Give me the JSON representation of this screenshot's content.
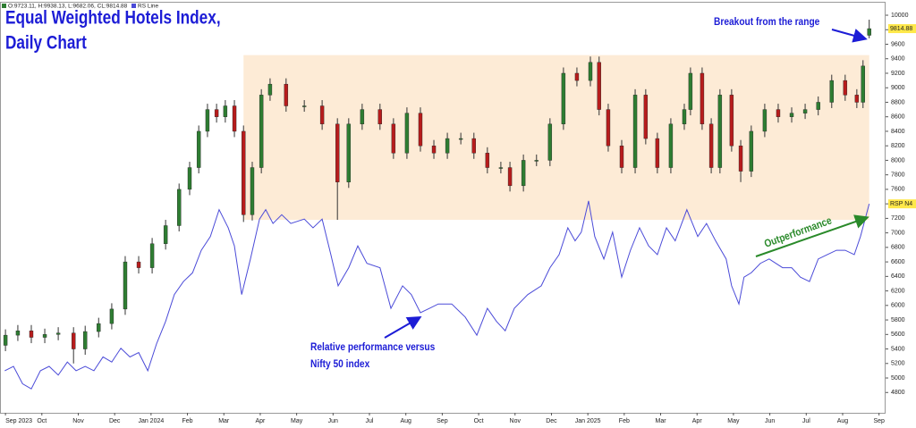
{
  "chart_data": {
    "type": "candlestick",
    "title": [
      "Equal Weighted Hotels Index,",
      "Daily Chart"
    ],
    "ohlc_label": "O:9723.11, H:9938.13, L:9682.06, CL:9814.88",
    "rs_tag": "RSP N4",
    "annotations": {
      "breakout": "Breakout from the range",
      "outperformance": "Outperformance",
      "relative": [
        "Relative performance versus",
        "Nifty 50 index"
      ]
    },
    "range": {
      "x": [
        6.54,
        23.73
      ],
      "y": [
        7180,
        9450
      ],
      "color": "#fdebd6"
    },
    "xlim": [
      -0.15,
      24.18
    ],
    "ylim": [
      4520,
      10185
    ],
    "xticks": [
      {
        "value": 0,
        "label": "Sep 2023"
      },
      {
        "value": 1,
        "label": "Oct"
      },
      {
        "value": 2,
        "label": "Nov"
      },
      {
        "value": 3,
        "label": "Dec"
      },
      {
        "value": 4,
        "label": "Jan 2024"
      },
      {
        "value": 5,
        "label": "Feb"
      },
      {
        "value": 6,
        "label": "Mar"
      },
      {
        "value": 7,
        "label": "Apr"
      },
      {
        "value": 8,
        "label": "May"
      },
      {
        "value": 9,
        "label": "Jun"
      },
      {
        "value": 10,
        "label": "Jul"
      },
      {
        "value": 11,
        "label": "Aug"
      },
      {
        "value": 12,
        "label": "Sep"
      },
      {
        "value": 13,
        "label": "Oct"
      },
      {
        "value": 14,
        "label": "Nov"
      },
      {
        "value": 15,
        "label": "Dec"
      },
      {
        "value": 16,
        "label": "Jan 2025"
      },
      {
        "value": 17,
        "label": "Feb"
      },
      {
        "value": 18,
        "label": "Mar"
      },
      {
        "value": 19,
        "label": "Apr"
      },
      {
        "value": 20,
        "label": "May"
      },
      {
        "value": 21,
        "label": "Jun"
      },
      {
        "value": 22,
        "label": "Jul"
      },
      {
        "value": 23,
        "label": "Aug"
      },
      {
        "value": 24,
        "label": "Sep"
      }
    ],
    "yticks": [
      4800,
      5000,
      5200,
      5400,
      5600,
      5800,
      6000,
      6200,
      6400,
      6600,
      6800,
      7000,
      7200,
      7400,
      7600,
      7800,
      8000,
      8200,
      8400,
      8600,
      8800,
      9000,
      9200,
      9400,
      9600,
      9800,
      10000
    ],
    "up_color": "#2e7d32",
    "down_color": "#b71c1c",
    "candles": {
      "x": [
        0,
        0.34,
        0.71,
        1.08,
        1.45,
        1.87,
        2.19,
        2.56,
        2.92,
        3.29,
        3.66,
        4.03,
        4.4,
        4.77,
        5.06,
        5.31,
        5.55,
        5.8,
        6.04,
        6.29,
        6.54,
        6.78,
        7.03,
        7.27,
        7.71,
        8.21,
        8.7,
        9.12,
        9.43,
        9.8,
        10.29,
        10.66,
        11.03,
        11.4,
        11.77,
        12.14,
        12.51,
        12.87,
        13.24,
        13.61,
        13.86,
        14.23,
        14.59,
        14.96,
        15.33,
        15.7,
        16.07,
        16.31,
        16.56,
        16.93,
        17.3,
        17.59,
        17.91,
        18.28,
        18.65,
        18.82,
        19.14,
        19.39,
        19.63,
        19.95,
        20.2,
        20.49,
        20.86,
        21.23,
        21.6,
        21.97,
        22.33,
        22.7,
        23.07,
        23.39,
        23.56,
        23.73
      ],
      "open": [
        5450,
        5590,
        5650,
        5560,
        5600,
        5620,
        5400,
        5640,
        5750,
        5950,
        6600,
        6520,
        6850,
        7100,
        7600,
        7900,
        8400,
        8700,
        8600,
        8750,
        8400,
        7250,
        7900,
        8900,
        9050,
        8750,
        8750,
        8500,
        7700,
        8500,
        8700,
        8500,
        8100,
        8650,
        8200,
        8100,
        8300,
        8300,
        8100,
        7900,
        7900,
        7650,
        8000,
        8000,
        8500,
        9200,
        9100,
        9350,
        8700,
        8200,
        7900,
        8900,
        8300,
        7900,
        8500,
        8700,
        9200,
        8500,
        7900,
        8900,
        8200,
        7850,
        8400,
        8700,
        8600,
        8650,
        8700,
        8800,
        9100,
        8900,
        8800,
        9723.11
      ],
      "high": [
        5670,
        5730,
        5730,
        5680,
        5700,
        5700,
        5720,
        5830,
        6030,
        6680,
        6680,
        6930,
        7180,
        7680,
        7980,
        8480,
        8780,
        8780,
        8830,
        8830,
        8480,
        7980,
        8980,
        9130,
        9130,
        8830,
        8830,
        8580,
        8580,
        8780,
        8780,
        8580,
        8730,
        8730,
        8280,
        8380,
        8380,
        8380,
        8180,
        7980,
        7980,
        8080,
        8080,
        8580,
        9280,
        9280,
        9430,
        9430,
        8780,
        8280,
        8980,
        8980,
        8380,
        8580,
        8780,
        9280,
        9280,
        8580,
        8980,
        8980,
        8280,
        8480,
        8780,
        8780,
        8730,
        8780,
        8880,
        9180,
        9180,
        8980,
        9380,
        9938.13
      ],
      "low": [
        5370,
        5510,
        5480,
        5480,
        5520,
        5200,
        5320,
        5560,
        5670,
        5870,
        6440,
        6440,
        6770,
        7020,
        7520,
        7820,
        8320,
        8520,
        8520,
        8320,
        7150,
        7170,
        7820,
        8820,
        8670,
        8670,
        8420,
        7180,
        7620,
        8420,
        8420,
        8020,
        8020,
        8120,
        8020,
        8020,
        8220,
        8020,
        7820,
        7820,
        7570,
        7570,
        7920,
        7920,
        8420,
        9020,
        9020,
        8620,
        8120,
        7820,
        7820,
        8220,
        7820,
        7820,
        8420,
        8620,
        8420,
        7820,
        7820,
        8120,
        7700,
        7770,
        8320,
        8520,
        8520,
        8570,
        8620,
        8720,
        8820,
        8720,
        8720,
        9682.06
      ],
      "close": [
        5590,
        5650,
        5560,
        5600,
        5620,
        5400,
        5640,
        5750,
        5950,
        6600,
        6520,
        6850,
        7100,
        7600,
        7900,
        8400,
        8700,
        8600,
        8750,
        8400,
        7250,
        7900,
        8900,
        9050,
        8750,
        8750,
        8500,
        7700,
        8500,
        8700,
        8500,
        8100,
        8650,
        8200,
        8100,
        8300,
        8300,
        8100,
        7900,
        7900,
        7650,
        8000,
        8000,
        8500,
        9200,
        9100,
        9350,
        8700,
        8200,
        7900,
        8900,
        8300,
        7900,
        8500,
        8700,
        9200,
        8500,
        7900,
        8900,
        8200,
        7850,
        8400,
        8700,
        8600,
        8650,
        8700,
        8800,
        9100,
        8900,
        8800,
        9300,
        9814.88
      ]
    },
    "rs": {
      "name": "RS Line",
      "color": "#4b4bd8",
      "x": [
        -0.02,
        0.22,
        0.47,
        0.71,
        0.96,
        1.2,
        1.45,
        1.7,
        1.94,
        2.19,
        2.43,
        2.68,
        2.92,
        3.17,
        3.42,
        3.66,
        3.91,
        4.15,
        4.4,
        4.64,
        4.89,
        5.14,
        5.38,
        5.63,
        5.87,
        6.12,
        6.29,
        6.49,
        6.73,
        6.98,
        7.15,
        7.35,
        7.59,
        7.84,
        8.21,
        8.45,
        8.7,
        8.94,
        9.14,
        9.43,
        9.68,
        9.93,
        10.29,
        10.59,
        10.91,
        11.15,
        11.4,
        11.65,
        11.89,
        12.26,
        12.63,
        12.95,
        13.24,
        13.49,
        13.73,
        13.98,
        14.35,
        14.72,
        14.96,
        15.21,
        15.45,
        15.65,
        15.82,
        16.02,
        16.19,
        16.44,
        16.68,
        16.93,
        17.17,
        17.42,
        17.67,
        17.91,
        18.16,
        18.4,
        18.72,
        19.02,
        19.26,
        19.51,
        19.8,
        19.95,
        20.15,
        20.29,
        20.49,
        20.74,
        20.98,
        21.35,
        21.6,
        21.84,
        22.09,
        22.33,
        22.58,
        22.83,
        23.07,
        23.32,
        23.49,
        23.73
      ],
      "values": [
        5100,
        5160,
        4920,
        4850,
        5100,
        5160,
        5040,
        5220,
        5100,
        5160,
        5100,
        5290,
        5220,
        5410,
        5290,
        5350,
        5100,
        5470,
        5780,
        6150,
        6330,
        6450,
        6760,
        6950,
        7320,
        7070,
        6820,
        6150,
        6640,
        7190,
        7320,
        7130,
        7250,
        7130,
        7190,
        7070,
        7190,
        6700,
        6270,
        6520,
        6820,
        6580,
        6520,
        5960,
        6270,
        6150,
        5900,
        5960,
        6020,
        6020,
        5840,
        5590,
        5960,
        5780,
        5650,
        5960,
        6150,
        6270,
        6520,
        6700,
        7070,
        6890,
        7010,
        7440,
        6950,
        6640,
        7010,
        6390,
        6760,
        7070,
        6820,
        6700,
        7070,
        6890,
        7320,
        6950,
        7130,
        6890,
        6640,
        6270,
        6020,
        6390,
        6450,
        6580,
        6640,
        6520,
        6520,
        6390,
        6330,
        6640,
        6700,
        6760,
        6760,
        6700,
        6950,
        7400
      ]
    }
  }
}
